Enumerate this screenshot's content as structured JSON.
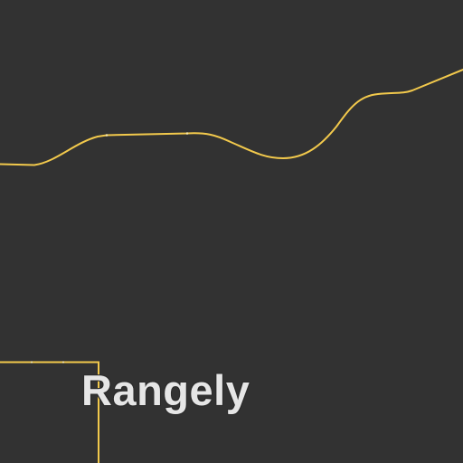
{
  "map": {
    "place_label": "Rangely",
    "colors": {
      "background": "#323232",
      "road": "#f2c94c",
      "road_node": "#fbe7a6",
      "label": "#e6e6e6",
      "label_halo": "#2b2b2b"
    },
    "features": [
      {
        "type": "road",
        "name": "highway-road"
      },
      {
        "type": "boundary",
        "name": "town-boundary"
      }
    ]
  }
}
